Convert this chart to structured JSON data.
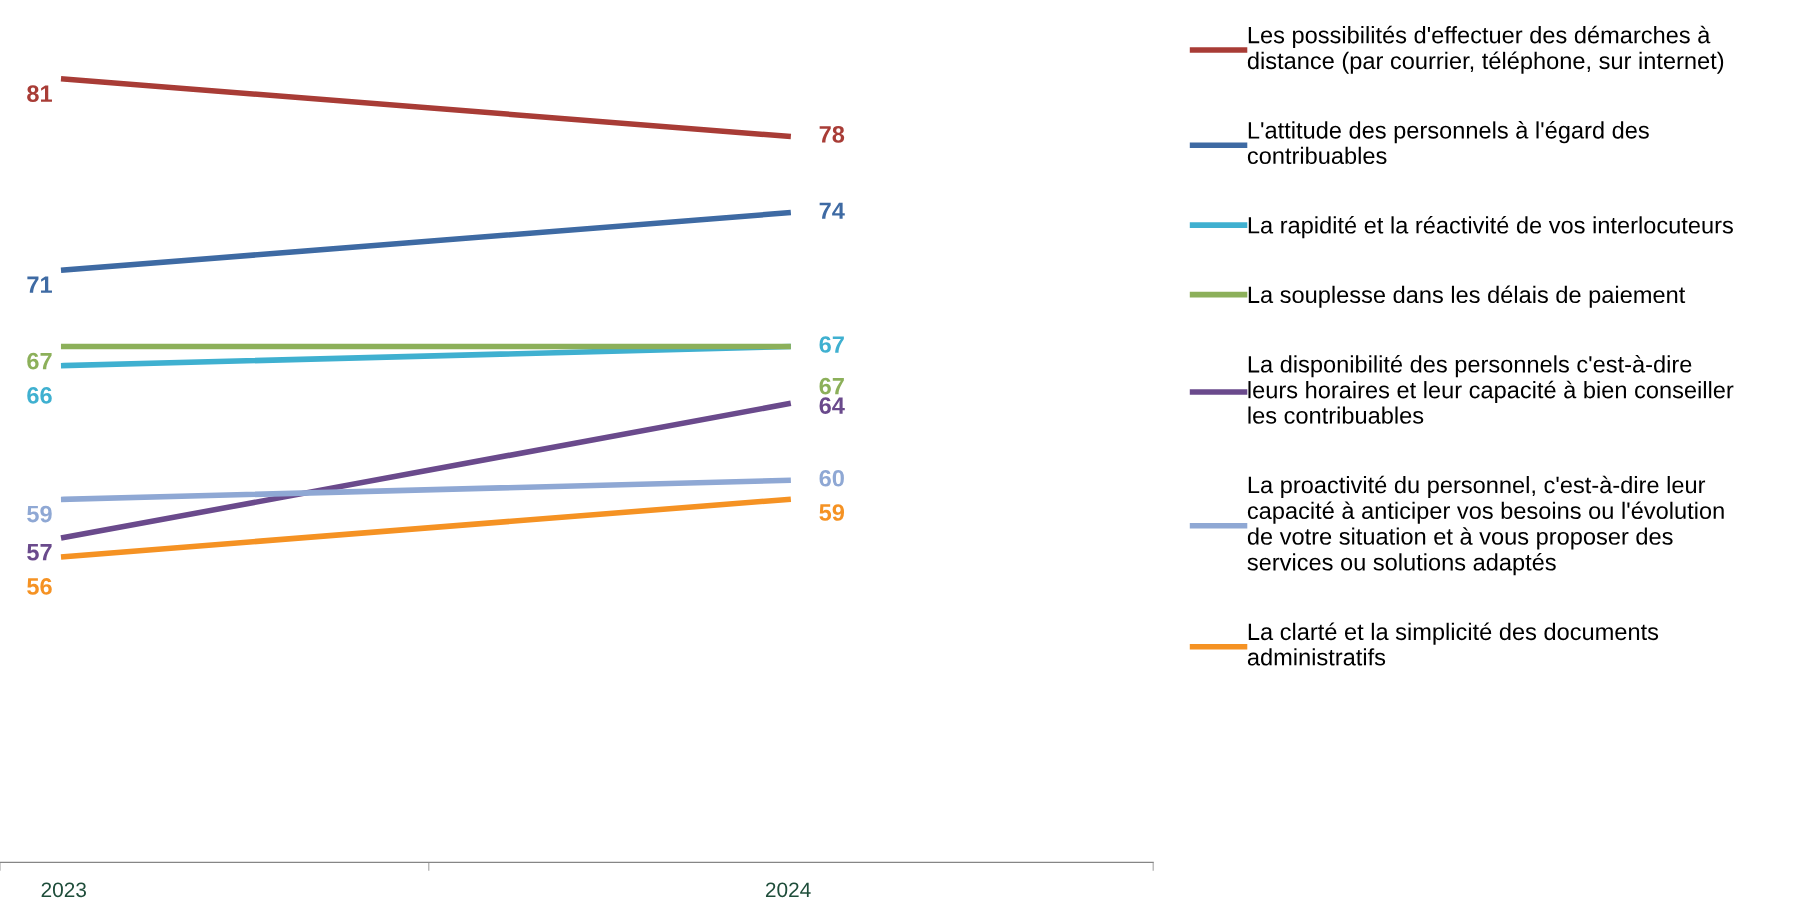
{
  "chart_data": {
    "type": "line",
    "categories": [
      "2023",
      "2024"
    ],
    "tick_labels": "x",
    "data_labels": true,
    "grid": false,
    "legend": "right",
    "marker": "none",
    "line_style": "solid",
    "series": [
      {
        "name": "Les possibilités d'effectuer des démarches à\ndistance (par courrier, téléphone, sur internet)",
        "color": "#a83c36",
        "values": [
          81,
          78
        ]
      },
      {
        "name": "L'attitude des personnels à l'égard des\ncontribuables",
        "color": "#3e6aa3",
        "values": [
          71,
          74
        ]
      },
      {
        "name": "La rapidité et la réactivité de vos interlocuteurs",
        "color": "#3fb0d0",
        "values": [
          66,
          67
        ]
      },
      {
        "name": "La souplesse dans les délais de paiement",
        "color": "#8cb05a",
        "values": [
          67,
          67
        ]
      },
      {
        "name": "La disponibilité des personnels c'est-à-dire\nleurs horaires et leur capacité à bien conseiller\nles contribuables",
        "color": "#6a4a8c",
        "values": [
          57,
          64
        ]
      },
      {
        "name": "La proactivité du personnel, c'est-à-dire leur\ncapacité à anticiper vos besoins ou l'évolution\nde votre situation et à vous proposer des\nservices ou solutions adaptés",
        "color": "#8fa8d4",
        "values": [
          59,
          60
        ]
      },
      {
        "name": "La clarté et la simplicité des documents\nadministratifs",
        "color": "#f59223",
        "values": [
          56,
          59
        ]
      }
    ]
  }
}
